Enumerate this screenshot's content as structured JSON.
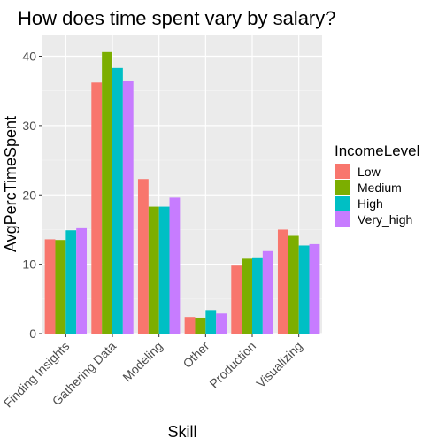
{
  "chart_data": {
    "type": "bar",
    "title": "How does time spent vary by salary?",
    "xlabel": "Skill",
    "ylabel": "AvgPercTimeSpent",
    "categories": [
      "Finding Insights",
      "Gathering Data",
      "Modeling",
      "Other",
      "Production",
      "Visualizing"
    ],
    "series": [
      {
        "name": "Low",
        "color": "#F8766D",
        "values": [
          13.6,
          36.2,
          22.3,
          2.4,
          9.8,
          15.0
        ]
      },
      {
        "name": "Medium",
        "color": "#7CAE00",
        "values": [
          13.5,
          40.6,
          18.3,
          2.3,
          10.8,
          14.1
        ]
      },
      {
        "name": "High",
        "color": "#00BFC4",
        "values": [
          14.9,
          38.3,
          18.3,
          3.4,
          11.0,
          12.7
        ]
      },
      {
        "name": "Very_high",
        "color": "#C77CFF",
        "values": [
          15.2,
          36.4,
          19.6,
          2.9,
          11.9,
          12.9
        ]
      }
    ],
    "ylim": [
      0,
      43
    ],
    "yticks": [
      0,
      10,
      20,
      30,
      40
    ],
    "legend_title": "IncomeLevel",
    "legend_position": "right",
    "grid": true
  }
}
